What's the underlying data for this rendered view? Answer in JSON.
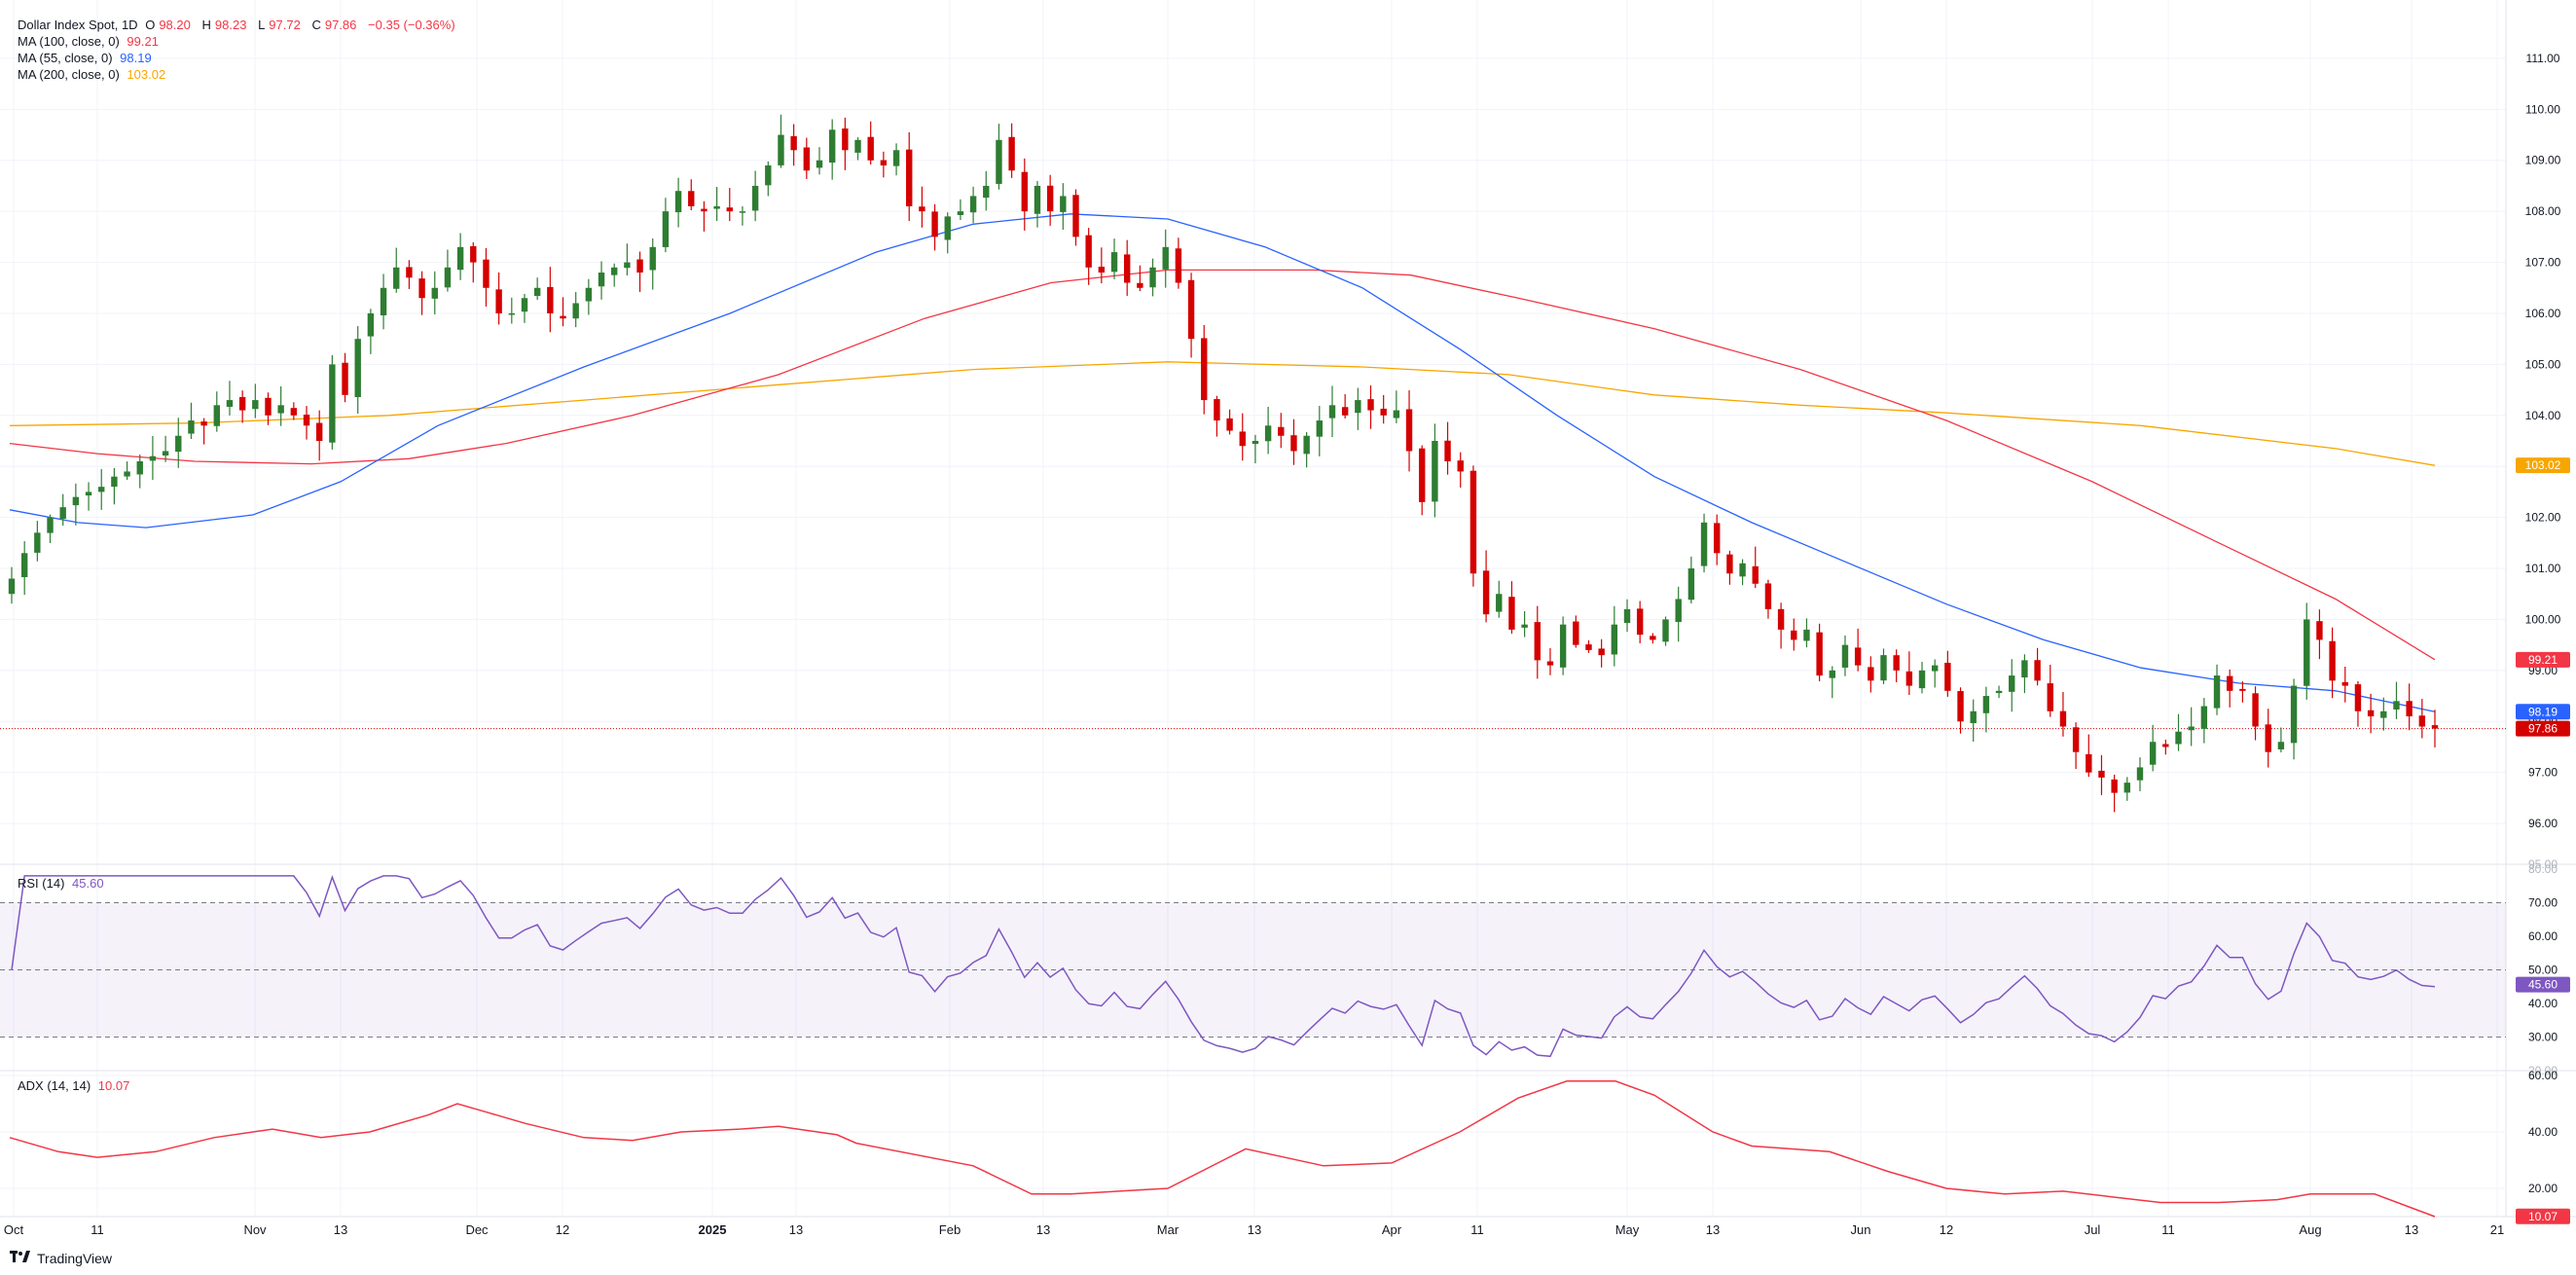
{
  "legend": {
    "symbol": "Dollar Index Spot, 1D",
    "o_label": "O",
    "o_value": "98.20",
    "h_label": "H",
    "h_value": "98.23",
    "l_label": "L",
    "l_value": "97.72",
    "c_label": "C",
    "c_value": "97.86",
    "change": "−0.35 (−0.36%)",
    "ma100_label": "MA (100, close, 0)",
    "ma100_value": "99.21",
    "ma55_label": "MA (55, close, 0)",
    "ma55_value": "98.19",
    "ma200_label": "MA (200, close, 0)",
    "ma200_value": "103.02",
    "rsi_label": "RSI (14)",
    "rsi_value": "45.60",
    "adx_label": "ADX (14, 14)",
    "adx_value": "10.07"
  },
  "brand": {
    "name": "TradingView"
  },
  "colors": {
    "up": "#26a69a",
    "up_body": "#2e7d32",
    "down": "#d50000",
    "ma100": "#f23645",
    "ma55": "#2962ff",
    "ma200": "#f7a600",
    "rsi": "#7e57c2",
    "adx": "#f23645",
    "grid": "#f0f3fa"
  },
  "chart_data": [
    {
      "type": "candlestick",
      "title": "Dollar Index Spot, 1D",
      "ylim": [
        95.2,
        111.8
      ],
      "y_ticks": [
        96.0,
        97.0,
        98.0,
        99.0,
        100.0,
        101.0,
        102.0,
        103.0,
        104.0,
        105.0,
        106.0,
        107.0,
        108.0,
        109.0,
        110.0,
        111.0
      ],
      "x_tick_labels": [
        "Oct",
        "11",
        "Nov",
        "13",
        "Dec",
        "12",
        "2025",
        "13",
        "Feb",
        "13",
        "Mar",
        "13",
        "Apr",
        "11",
        "May",
        "13",
        "Jun",
        "12",
        "Jul",
        "11",
        "Aug",
        "13",
        "21"
      ],
      "last_close": 97.86,
      "last_close_label": "97.86",
      "series_closes": [
        100.8,
        101.3,
        101.7,
        102.0,
        102.2,
        102.4,
        102.5,
        102.6,
        102.8,
        102.9,
        103.1,
        103.2,
        103.3,
        103.6,
        103.9,
        103.8,
        104.2,
        104.3,
        104.1,
        104.3,
        104.0,
        104.2,
        104.0,
        103.8,
        103.5,
        105.0,
        104.4,
        105.5,
        106.0,
        106.5,
        106.9,
        106.7,
        106.3,
        106.5,
        106.9,
        107.3,
        107.0,
        106.5,
        106.0,
        106.0,
        106.3,
        106.5,
        106.0,
        105.9,
        106.2,
        106.5,
        106.8,
        106.9,
        107.0,
        106.8,
        107.3,
        108.0,
        108.4,
        108.1,
        108.0,
        108.1,
        108.0,
        108.0,
        108.5,
        108.9,
        109.5,
        109.2,
        108.8,
        109.0,
        109.6,
        109.2,
        109.4,
        109.0,
        108.9,
        109.2,
        108.1,
        108.0,
        107.5,
        107.9,
        108.0,
        108.3,
        108.5,
        109.4,
        108.8,
        108.0,
        108.5,
        108.0,
        108.3,
        107.5,
        106.9,
        106.8,
        107.2,
        106.6,
        106.5,
        106.9,
        107.3,
        106.6,
        105.5,
        104.3,
        103.9,
        103.7,
        103.4,
        103.5,
        103.8,
        103.6,
        103.3,
        103.6,
        103.9,
        104.2,
        104.0,
        104.3,
        104.1,
        104.0,
        104.1,
        103.3,
        102.3,
        103.5,
        103.1,
        102.9,
        100.9,
        100.1,
        100.5,
        99.8,
        99.9,
        99.2,
        99.1,
        99.9,
        99.5,
        99.4,
        99.3,
        99.9,
        100.2,
        99.7,
        99.6,
        100.0,
        100.4,
        101.0,
        101.9,
        101.3,
        100.9,
        101.1,
        100.7,
        100.2,
        99.8,
        99.6,
        99.8,
        98.9,
        99.0,
        99.5,
        99.1,
        98.8,
        99.3,
        99.0,
        98.7,
        99.0,
        99.1,
        98.6,
        98.0,
        98.2,
        98.5,
        98.6,
        98.9,
        99.2,
        98.8,
        98.2,
        97.9,
        97.4,
        97.0,
        96.9,
        96.6,
        96.8,
        97.1,
        97.6,
        97.5,
        97.8,
        97.9,
        98.3,
        98.9,
        98.6,
        98.6,
        97.9,
        97.4,
        97.6,
        98.7,
        100.0,
        99.6,
        98.8,
        98.7,
        98.2,
        98.1,
        98.2,
        98.4,
        98.1,
        97.9,
        97.86
      ]
    },
    {
      "type": "line",
      "title": "RSI (14)",
      "ylim": [
        20,
        80
      ],
      "y_ticks": [
        20.0,
        30.0,
        40.0,
        50.0,
        60.0,
        70.0,
        80.0
      ],
      "bands": [
        30,
        50,
        70
      ],
      "last_value": 45.6
    },
    {
      "type": "line",
      "title": "ADX (14, 14)",
      "ylim": [
        10,
        60
      ],
      "y_ticks": [
        20.0,
        40.0,
        60.0
      ],
      "last_value": 10.07
    }
  ]
}
